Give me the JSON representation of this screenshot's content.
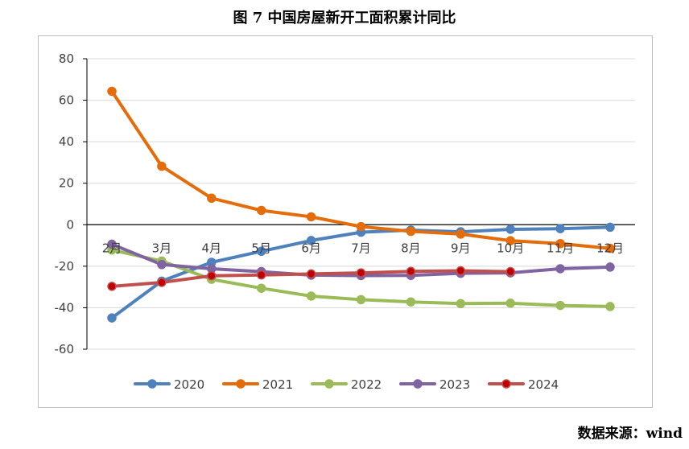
{
  "chart_data": {
    "type": "line",
    "title": "图 7  中国房屋新开工面积累计同比",
    "xlabel": "",
    "ylabel": "",
    "categories": [
      "2月",
      "3月",
      "4月",
      "5月",
      "6月",
      "7月",
      "8月",
      "9月",
      "10月",
      "11月",
      "12月"
    ],
    "ylim": [
      -60,
      80
    ],
    "yticks": [
      -60,
      -40,
      -20,
      0,
      20,
      40,
      60,
      80
    ],
    "grid": true,
    "legend": "bottom",
    "series": [
      {
        "name": "2020",
        "color": "#4f81bd",
        "values": [
          -44.9,
          -27.2,
          -18.1,
          -12.8,
          -7.6,
          -3.6,
          -2.6,
          -3.4,
          -2.2,
          -1.9,
          -1.2
        ]
      },
      {
        "name": "2021",
        "color": "#e46c0a",
        "values": [
          64.3,
          28.2,
          12.8,
          6.9,
          3.8,
          -0.9,
          -3.2,
          -4.5,
          -7.7,
          -9.1,
          -11.4
        ]
      },
      {
        "name": "2022",
        "color": "#9bbb59",
        "values": [
          -12.2,
          -17.5,
          -26.3,
          -30.6,
          -34.4,
          -36.1,
          -37.2,
          -38.0,
          -37.8,
          -38.9,
          -39.4
        ]
      },
      {
        "name": "2023",
        "color": "#8064a2",
        "values": [
          -9.4,
          -19.2,
          -21.2,
          -22.6,
          -24.3,
          -24.5,
          -24.4,
          -23.4,
          -23.2,
          -21.2,
          -20.4
        ]
      },
      {
        "name": "2024",
        "color": "#c0504d",
        "values": [
          -29.7,
          -27.8,
          -24.6,
          -24.2,
          -23.7,
          -23.2,
          -22.5,
          -22.2,
          -22.6,
          null,
          null
        ]
      }
    ],
    "marker_fill": {
      "2024": "#c00000"
    }
  },
  "source": "数据来源：wind"
}
